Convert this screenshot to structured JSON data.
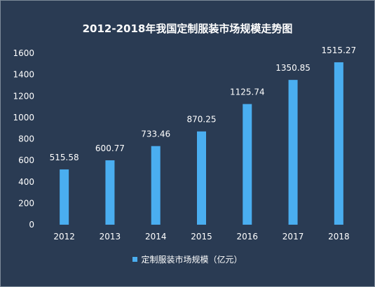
{
  "chart_data": {
    "type": "bar",
    "title": "2012-2018年我国定制服装市场规模走势图",
    "categories": [
      "2012",
      "2013",
      "2014",
      "2015",
      "2016",
      "2017",
      "2018"
    ],
    "series": [
      {
        "name": "定制服装市场规模（亿元）",
        "values": [
          515.58,
          600.77,
          733.46,
          870.25,
          1125.74,
          1350.85,
          1515.27
        ],
        "labels": [
          "515.58",
          "600.77",
          "733.46",
          "870.25",
          "1125.74",
          "1350.85",
          "1515.27"
        ]
      }
    ],
    "ylim": [
      0,
      1600
    ],
    "yticks": [
      "0",
      "200",
      "400",
      "600",
      "800",
      "1000",
      "1200",
      "1400",
      "1600"
    ],
    "grid": false,
    "legend_position": "bottom",
    "colors": {
      "background": "#2a3b53",
      "bar": "#4aaef0",
      "text": "#ffffff"
    }
  }
}
